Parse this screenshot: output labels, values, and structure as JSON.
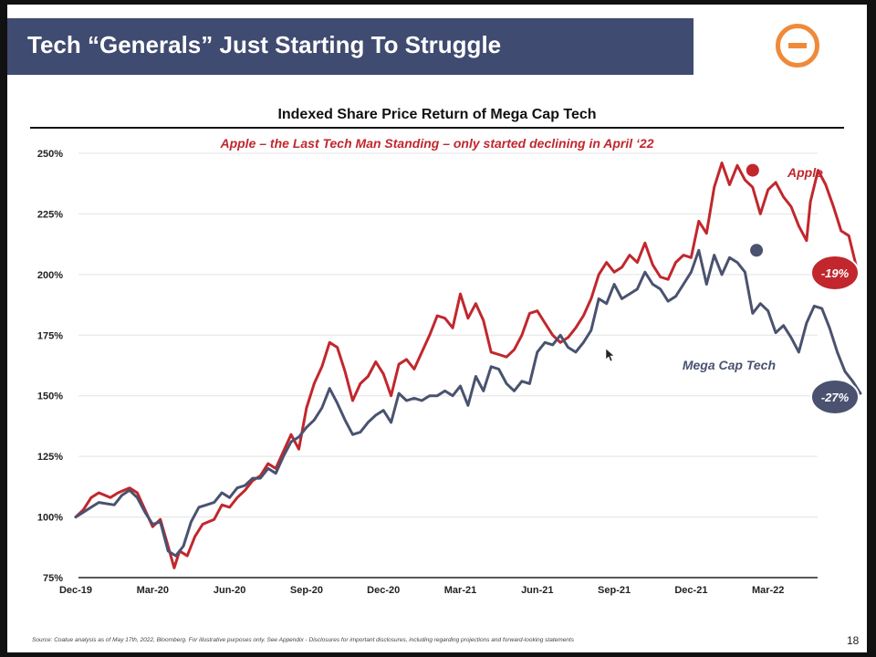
{
  "slide": {
    "title": "Tech “Generals” Just Starting To Struggle",
    "page_number": "18",
    "footnote": "Source: Coatue analysis as of May 17th, 2022, Bloomberg. For illustrative purposes only. See Appendix - Disclosures for important disclosures, including regarding projections and forward-looking statements"
  },
  "colors": {
    "title_bar": "#3f4b70",
    "apple": "#c1272d",
    "mega_cap": "#4a5270",
    "logo": "#ef8a3a"
  },
  "icons": {
    "logo": "orange-minus-circle-logo"
  },
  "chart_data": {
    "type": "line",
    "title": "Indexed Share Price Return of Mega Cap Tech",
    "subtitle": "Apple – the Last Tech Man Standing – only started declining in April ‘22",
    "xlabel": "",
    "ylabel": "",
    "ylim": [
      75,
      250
    ],
    "y_ticks": [
      75,
      100,
      125,
      150,
      175,
      200,
      225,
      250
    ],
    "y_tick_labels": [
      "75%",
      "100%",
      "125%",
      "150%",
      "175%",
      "200%",
      "225%",
      "250%"
    ],
    "x_tick_labels": [
      "Dec-19",
      "Mar-20",
      "Jun-20",
      "Sep-20",
      "Dec-20",
      "Mar-21",
      "Jun-21",
      "Sep-21",
      "Dec-21",
      "Mar-22"
    ],
    "grid": true,
    "series": [
      {
        "name": "Apple",
        "end_label": "-19%",
        "color": "#c1272d",
        "marker_at": [
          8.8,
          243
        ],
        "points": [
          [
            0,
            100
          ],
          [
            0.1,
            103
          ],
          [
            0.2,
            108
          ],
          [
            0.3,
            110
          ],
          [
            0.45,
            108
          ],
          [
            0.55,
            110
          ],
          [
            0.7,
            112
          ],
          [
            0.8,
            110
          ],
          [
            0.9,
            103
          ],
          [
            1.0,
            96
          ],
          [
            1.1,
            99
          ],
          [
            1.2,
            88
          ],
          [
            1.28,
            79
          ],
          [
            1.35,
            86
          ],
          [
            1.45,
            84
          ],
          [
            1.55,
            92
          ],
          [
            1.65,
            97
          ],
          [
            1.8,
            99
          ],
          [
            1.9,
            105
          ],
          [
            2.0,
            104
          ],
          [
            2.1,
            108
          ],
          [
            2.2,
            111
          ],
          [
            2.3,
            115
          ],
          [
            2.4,
            117
          ],
          [
            2.5,
            122
          ],
          [
            2.6,
            120
          ],
          [
            2.7,
            127
          ],
          [
            2.8,
            134
          ],
          [
            2.9,
            128
          ],
          [
            3.0,
            145
          ],
          [
            3.1,
            155
          ],
          [
            3.2,
            162
          ],
          [
            3.3,
            172
          ],
          [
            3.4,
            170
          ],
          [
            3.5,
            160
          ],
          [
            3.6,
            148
          ],
          [
            3.7,
            155
          ],
          [
            3.8,
            158
          ],
          [
            3.9,
            164
          ],
          [
            4.0,
            159
          ],
          [
            4.1,
            150
          ],
          [
            4.2,
            163
          ],
          [
            4.3,
            165
          ],
          [
            4.4,
            161
          ],
          [
            4.5,
            168
          ],
          [
            4.6,
            175
          ],
          [
            4.7,
            183
          ],
          [
            4.8,
            182
          ],
          [
            4.9,
            178
          ],
          [
            5.0,
            192
          ],
          [
            5.1,
            182
          ],
          [
            5.2,
            188
          ],
          [
            5.3,
            181
          ],
          [
            5.4,
            168
          ],
          [
            5.5,
            167
          ],
          [
            5.6,
            166
          ],
          [
            5.7,
            169
          ],
          [
            5.8,
            175
          ],
          [
            5.9,
            184
          ],
          [
            6.0,
            185
          ],
          [
            6.1,
            180
          ],
          [
            6.2,
            175
          ],
          [
            6.3,
            172
          ],
          [
            6.4,
            174
          ],
          [
            6.5,
            178
          ],
          [
            6.6,
            183
          ],
          [
            6.7,
            190
          ],
          [
            6.8,
            200
          ],
          [
            6.9,
            205
          ],
          [
            7.0,
            201
          ],
          [
            7.1,
            203
          ],
          [
            7.2,
            208
          ],
          [
            7.3,
            205
          ],
          [
            7.4,
            213
          ],
          [
            7.5,
            204
          ],
          [
            7.6,
            199
          ],
          [
            7.7,
            198
          ],
          [
            7.8,
            205
          ],
          [
            7.9,
            208
          ],
          [
            8.0,
            207
          ],
          [
            8.1,
            222
          ],
          [
            8.2,
            217
          ],
          [
            8.3,
            236
          ],
          [
            8.4,
            246
          ],
          [
            8.5,
            237
          ],
          [
            8.6,
            245
          ],
          [
            8.7,
            239
          ],
          [
            8.8,
            236
          ],
          [
            8.9,
            225
          ],
          [
            9.0,
            235
          ],
          [
            9.1,
            238
          ],
          [
            9.2,
            232
          ],
          [
            9.3,
            228
          ],
          [
            9.4,
            220
          ],
          [
            9.5,
            214
          ],
          [
            9.55,
            230
          ],
          [
            9.65,
            243
          ],
          [
            9.75,
            237
          ],
          [
            9.85,
            228
          ],
          [
            9.95,
            218
          ],
          [
            10.05,
            216
          ],
          [
            10.15,
            203
          ]
        ]
      },
      {
        "name": "Mega Cap Tech",
        "end_label": "-27%",
        "color": "#4a5270",
        "marker_at": [
          8.85,
          210
        ],
        "points": [
          [
            0,
            100
          ],
          [
            0.1,
            102
          ],
          [
            0.2,
            104
          ],
          [
            0.3,
            106
          ],
          [
            0.5,
            105
          ],
          [
            0.6,
            109
          ],
          [
            0.7,
            111
          ],
          [
            0.8,
            108
          ],
          [
            0.9,
            102
          ],
          [
            1.0,
            97
          ],
          [
            1.1,
            98
          ],
          [
            1.2,
            86
          ],
          [
            1.3,
            84
          ],
          [
            1.4,
            88
          ],
          [
            1.5,
            98
          ],
          [
            1.6,
            104
          ],
          [
            1.7,
            105
          ],
          [
            1.8,
            106
          ],
          [
            1.9,
            110
          ],
          [
            2.0,
            108
          ],
          [
            2.1,
            112
          ],
          [
            2.2,
            113
          ],
          [
            2.3,
            116
          ],
          [
            2.4,
            116
          ],
          [
            2.5,
            120
          ],
          [
            2.6,
            118
          ],
          [
            2.7,
            125
          ],
          [
            2.8,
            131
          ],
          [
            2.9,
            133
          ],
          [
            3.0,
            137
          ],
          [
            3.1,
            140
          ],
          [
            3.2,
            145
          ],
          [
            3.3,
            153
          ],
          [
            3.4,
            147
          ],
          [
            3.5,
            140
          ],
          [
            3.6,
            134
          ],
          [
            3.7,
            135
          ],
          [
            3.8,
            139
          ],
          [
            3.9,
            142
          ],
          [
            4.0,
            144
          ],
          [
            4.1,
            139
          ],
          [
            4.2,
            151
          ],
          [
            4.3,
            148
          ],
          [
            4.4,
            149
          ],
          [
            4.5,
            148
          ],
          [
            4.6,
            150
          ],
          [
            4.7,
            150
          ],
          [
            4.8,
            152
          ],
          [
            4.9,
            150
          ],
          [
            5.0,
            154
          ],
          [
            5.1,
            146
          ],
          [
            5.2,
            158
          ],
          [
            5.3,
            152
          ],
          [
            5.4,
            162
          ],
          [
            5.5,
            161
          ],
          [
            5.6,
            155
          ],
          [
            5.7,
            152
          ],
          [
            5.8,
            156
          ],
          [
            5.9,
            155
          ],
          [
            6.0,
            168
          ],
          [
            6.1,
            172
          ],
          [
            6.2,
            171
          ],
          [
            6.3,
            175
          ],
          [
            6.4,
            170
          ],
          [
            6.5,
            168
          ],
          [
            6.6,
            172
          ],
          [
            6.7,
            177
          ],
          [
            6.8,
            190
          ],
          [
            6.9,
            188
          ],
          [
            7.0,
            196
          ],
          [
            7.1,
            190
          ],
          [
            7.2,
            192
          ],
          [
            7.3,
            194
          ],
          [
            7.4,
            201
          ],
          [
            7.5,
            196
          ],
          [
            7.6,
            194
          ],
          [
            7.7,
            189
          ],
          [
            7.8,
            191
          ],
          [
            7.9,
            196
          ],
          [
            8.0,
            201
          ],
          [
            8.1,
            210
          ],
          [
            8.2,
            196
          ],
          [
            8.3,
            208
          ],
          [
            8.4,
            200
          ],
          [
            8.5,
            207
          ],
          [
            8.6,
            205
          ],
          [
            8.7,
            201
          ],
          [
            8.8,
            184
          ],
          [
            8.9,
            188
          ],
          [
            9.0,
            185
          ],
          [
            9.1,
            176
          ],
          [
            9.2,
            179
          ],
          [
            9.3,
            174
          ],
          [
            9.4,
            168
          ],
          [
            9.5,
            180
          ],
          [
            9.6,
            187
          ],
          [
            9.7,
            186
          ],
          [
            9.8,
            178
          ],
          [
            9.9,
            168
          ],
          [
            10.0,
            160
          ],
          [
            10.1,
            156
          ],
          [
            10.2,
            151
          ]
        ]
      }
    ]
  }
}
